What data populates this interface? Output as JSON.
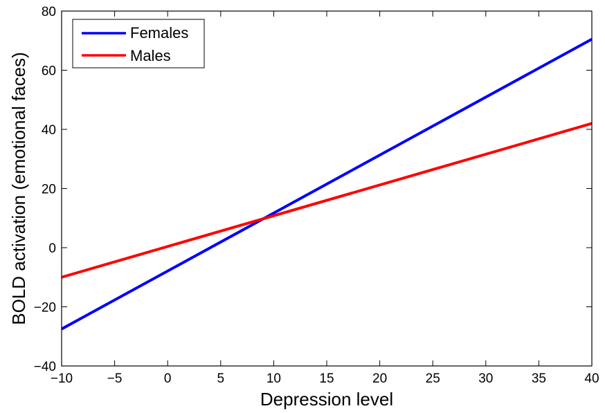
{
  "chart_data": {
    "type": "line",
    "title": "",
    "xlabel": "Depression level",
    "ylabel": "BOLD activation (emotional faces)",
    "xlim": [
      -10,
      40
    ],
    "ylim": [
      -40,
      80
    ],
    "xticks": [
      -10,
      -5,
      0,
      5,
      10,
      15,
      20,
      25,
      30,
      35,
      40
    ],
    "yticks": [
      -40,
      -20,
      0,
      20,
      40,
      60,
      80
    ],
    "xtick_labels": [
      "−10",
      "−5",
      "0",
      "5",
      "10",
      "15",
      "20",
      "25",
      "30",
      "35",
      "40"
    ],
    "ytick_labels": [
      "−40",
      "−20",
      "0",
      "20",
      "40",
      "60",
      "80"
    ],
    "grid": false,
    "legend_position": "top-left",
    "series": [
      {
        "name": "Females",
        "color": "#0000ff",
        "x": [
          -10,
          40
        ],
        "y": [
          -27.5,
          70.5
        ]
      },
      {
        "name": "Males",
        "color": "#ff0000",
        "x": [
          -10,
          40
        ],
        "y": [
          -10,
          42
        ]
      }
    ]
  }
}
